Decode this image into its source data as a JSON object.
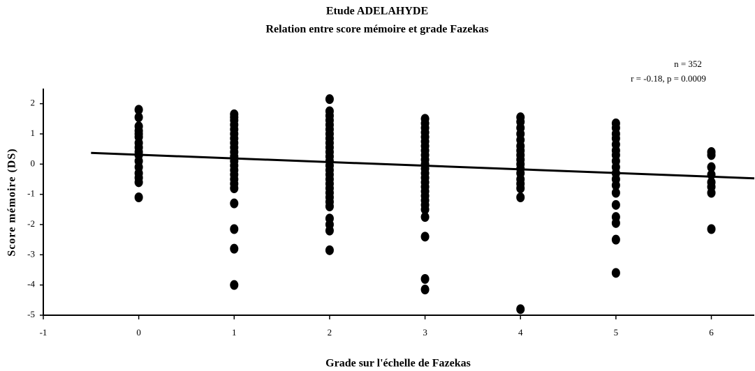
{
  "chart_data": {
    "type": "scatter",
    "title": "Etude ADELAHYDE",
    "subtitle": "Relation entre score mémoire et grade Fazekas",
    "annotations": [
      "n = 352",
      "r = -0.18, p = 0.0009"
    ],
    "xlabel": "Grade sur l'échelle de Fazekas",
    "ylabel": "Score mémoire (DS)",
    "color": "#000000",
    "xlim": [
      -1,
      6.45
    ],
    "xticks": [
      -1,
      0,
      1,
      2,
      3,
      4,
      5,
      6
    ],
    "ylim": [
      -5,
      2.5
    ],
    "yticks": [
      -5,
      -4,
      -3,
      -2,
      -1,
      0,
      1,
      2
    ],
    "x": [
      0,
      0,
      0,
      0,
      0,
      0,
      0,
      0,
      0,
      0,
      0,
      0,
      0,
      0,
      0,
      0,
      1,
      1,
      1,
      1,
      1,
      1,
      1,
      1,
      1,
      1,
      1,
      1,
      1,
      1,
      1,
      1,
      1,
      1,
      1,
      1,
      1,
      1,
      2,
      2,
      2,
      2,
      2,
      2,
      2,
      2,
      2,
      2,
      2,
      2,
      2,
      2,
      2,
      2,
      2,
      2,
      2,
      2,
      2,
      2,
      2,
      2,
      2,
      2,
      2,
      3,
      3,
      3,
      3,
      3,
      3,
      3,
      3,
      3,
      3,
      3,
      3,
      3,
      3,
      3,
      3,
      3,
      3,
      3,
      3,
      3,
      3,
      3,
      3,
      3,
      4,
      4,
      4,
      4,
      4,
      4,
      4,
      4,
      4,
      4,
      4,
      4,
      4,
      4,
      4,
      4,
      4,
      5,
      5,
      5,
      5,
      5,
      5,
      5,
      5,
      5,
      5,
      5,
      5,
      5,
      5,
      5,
      5,
      5,
      5,
      6,
      6,
      6,
      6,
      6,
      6,
      6,
      6
    ],
    "values": [
      1.8,
      1.55,
      1.25,
      1.1,
      1.0,
      0.9,
      0.7,
      0.55,
      0.4,
      0.3,
      0.1,
      -0.1,
      -0.3,
      -0.45,
      -0.6,
      -1.1,
      1.65,
      1.55,
      1.45,
      1.3,
      1.15,
      1.0,
      0.85,
      0.7,
      0.55,
      0.4,
      0.25,
      0.1,
      -0.05,
      -0.2,
      -0.35,
      -0.5,
      -0.65,
      -0.8,
      -1.3,
      -2.15,
      -2.8,
      -4.0,
      2.15,
      1.75,
      1.6,
      1.45,
      1.3,
      1.15,
      1.0,
      0.85,
      0.7,
      0.55,
      0.4,
      0.25,
      0.1,
      -0.05,
      -0.2,
      -0.35,
      -0.5,
      -0.65,
      -0.8,
      -0.95,
      -1.1,
      -1.25,
      -1.4,
      -1.8,
      -2.0,
      -2.2,
      -2.85,
      1.5,
      1.35,
      1.2,
      1.05,
      0.9,
      0.75,
      0.6,
      0.45,
      0.3,
      0.15,
      0,
      -0.15,
      -0.3,
      -0.45,
      -0.6,
      -0.75,
      -0.9,
      -1.05,
      -1.2,
      -1.35,
      -1.5,
      -1.75,
      -2.4,
      -3.8,
      -4.15,
      1.55,
      1.4,
      1.2,
      1.0,
      0.8,
      0.6,
      0.45,
      0.3,
      0.15,
      0,
      -0.15,
      -0.3,
      -0.5,
      -0.65,
      -0.8,
      -1.1,
      -4.8,
      1.35,
      1.2,
      1.0,
      0.85,
      0.65,
      0.45,
      0.3,
      0.1,
      -0.1,
      -0.3,
      -0.5,
      -0.7,
      -0.95,
      -1.35,
      -1.75,
      -1.95,
      -2.5,
      -3.6,
      0.4,
      0.3,
      -0.1,
      -0.35,
      -0.6,
      -0.75,
      -0.95,
      -2.15
    ],
    "trend": {
      "x": [
        -0.5,
        6.45
      ],
      "values": [
        0.37,
        -0.47
      ]
    }
  }
}
